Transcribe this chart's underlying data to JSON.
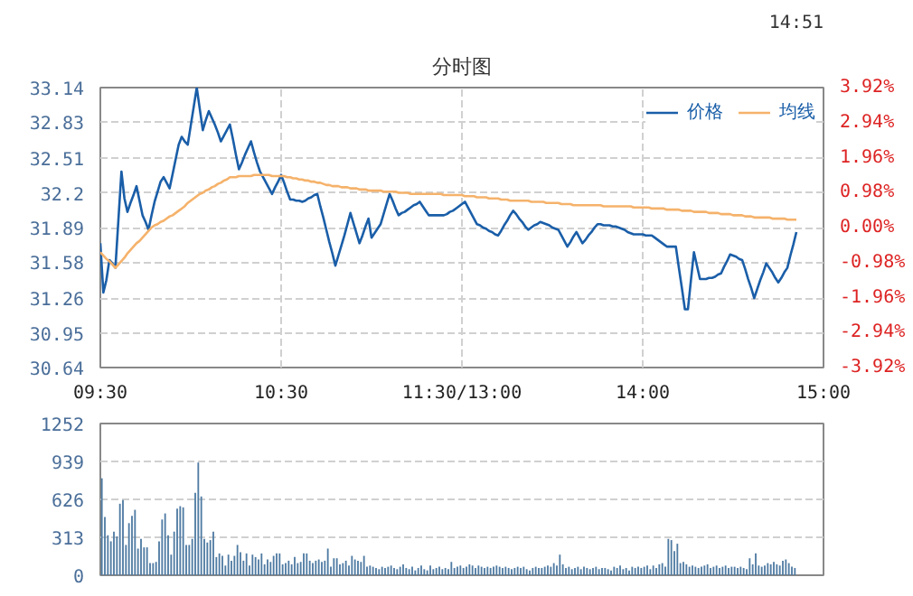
{
  "chart_data": [
    {
      "type": "line",
      "title": "分时图",
      "annotations": [
        "14:51"
      ],
      "legend": "top right",
      "grid": true,
      "line_style": "solid",
      "categories": [
        "09:30",
        null,
        null,
        null,
        null,
        null,
        null,
        null,
        null,
        null,
        null,
        null,
        null,
        null,
        null,
        null,
        null,
        null,
        null,
        null,
        null,
        null,
        null,
        null,
        null,
        null,
        null,
        null,
        null,
        null,
        null,
        null,
        null,
        null,
        null,
        null,
        null,
        null,
        null,
        null,
        null,
        null,
        null,
        null,
        null,
        null,
        null,
        null,
        null,
        null,
        null,
        null,
        null,
        null,
        null,
        null,
        null,
        null,
        null,
        null,
        "10:30",
        null,
        null,
        null,
        null,
        null,
        null,
        null,
        null,
        null,
        null,
        null,
        null,
        null,
        null,
        null,
        null,
        null,
        null,
        null,
        null,
        null,
        null,
        null,
        null,
        null,
        null,
        null,
        null,
        null,
        null,
        null,
        null,
        null,
        null,
        null,
        null,
        null,
        null,
        null,
        null,
        null,
        null,
        null,
        null,
        null,
        null,
        null,
        null,
        null,
        null,
        null,
        null,
        null,
        null,
        null,
        null,
        null,
        null,
        null,
        "11:30/13:00",
        null,
        null,
        null,
        null,
        null,
        null,
        null,
        null,
        null,
        null,
        null,
        null,
        null,
        null,
        null,
        null,
        null,
        null,
        null,
        null,
        null,
        null,
        null,
        null,
        null,
        null,
        null,
        null,
        null,
        null,
        null,
        null,
        null,
        null,
        null,
        null,
        null,
        null,
        null,
        null,
        null,
        null,
        null,
        null,
        null,
        null,
        null,
        null,
        null,
        null,
        null,
        null,
        null,
        null,
        null,
        null,
        null,
        null,
        null,
        "14:00",
        null,
        null,
        null,
        null,
        null,
        null,
        null,
        null,
        null,
        null,
        null,
        null,
        null,
        null,
        null,
        null,
        null,
        null,
        null,
        null,
        null,
        null,
        null,
        null,
        null,
        null,
        null,
        null,
        null,
        null,
        null,
        null,
        null,
        null,
        null,
        null,
        null,
        null,
        null,
        null,
        null,
        null,
        null,
        null,
        null,
        null,
        null,
        null,
        null,
        null,
        null,
        null,
        null,
        null,
        null,
        null,
        null,
        null,
        null,
        "15:00"
      ],
      "ylim": [
        30.64,
        33.14
      ],
      "yticks": [
        30.64,
        30.95,
        31.26,
        31.58,
        31.89,
        32.2,
        32.51,
        32.83,
        33.14
      ],
      "y2lim": [
        -3.92,
        3.92
      ],
      "y2ticks": [
        {
          "value": -3.92,
          "label": "-3.92%"
        },
        {
          "value": -2.94,
          "label": "-2.94%"
        },
        {
          "value": -1.96,
          "label": "-1.96%"
        },
        {
          "value": -0.98,
          "label": "-0.98%"
        },
        {
          "value": 0,
          "label": "0.00%"
        },
        {
          "value": 0.98,
          "label": "0.98%"
        },
        {
          "value": 1.96,
          "label": "1.96%"
        },
        {
          "value": 2.94,
          "label": "2.94%"
        },
        {
          "value": 3.92,
          "label": "3.92%"
        }
      ],
      "series": [
        {
          "name": "价格",
          "color": "#1a5ea8",
          "values": [
            31.75,
            31.31,
            31.42,
            31.6,
            31.57,
            31.53,
            31.96,
            32.39,
            32.15,
            32.03,
            32.11,
            32.18,
            32.26,
            32.13,
            32.0,
            31.94,
            31.87,
            32.0,
            32.12,
            32.21,
            32.3,
            32.34,
            32.29,
            32.24,
            32.37,
            32.5,
            32.63,
            32.7,
            32.66,
            32.63,
            32.8,
            32.97,
            33.14,
            32.95,
            32.76,
            32.85,
            32.93,
            32.87,
            32.81,
            32.74,
            32.66,
            32.71,
            32.76,
            32.81,
            32.68,
            32.54,
            32.41,
            32.47,
            32.54,
            32.6,
            32.66,
            32.56,
            32.47,
            32.39,
            32.34,
            32.29,
            32.24,
            32.19,
            32.25,
            32.3,
            32.36,
            32.29,
            32.21,
            32.14,
            32.14,
            32.13,
            32.13,
            32.12,
            32.13,
            32.15,
            32.16,
            32.18,
            32.19,
            32.08,
            31.98,
            31.87,
            31.76,
            31.66,
            31.55,
            31.64,
            31.73,
            31.82,
            31.92,
            32.02,
            31.93,
            31.84,
            31.75,
            31.82,
            31.9,
            31.97,
            31.8,
            31.84,
            31.88,
            31.92,
            32.01,
            32.1,
            32.19,
            32.13,
            32.06,
            32.0,
            32.02,
            32.03,
            32.05,
            32.07,
            32.09,
            32.1,
            32.12,
            32.08,
            32.04,
            32.0,
            32.0,
            32.0,
            32.0,
            32.0,
            32.0,
            32.01,
            32.03,
            32.04,
            32.06,
            32.08,
            32.1,
            32.12,
            32.07,
            32.02,
            31.97,
            31.92,
            31.91,
            31.89,
            31.88,
            31.86,
            31.85,
            31.83,
            31.82,
            31.86,
            31.91,
            31.95,
            32.0,
            32.04,
            32.01,
            31.97,
            31.94,
            31.9,
            31.87,
            31.89,
            31.91,
            31.92,
            31.94,
            31.93,
            31.92,
            31.91,
            31.89,
            31.88,
            31.87,
            31.82,
            31.77,
            31.72,
            31.76,
            31.81,
            31.85,
            31.8,
            31.75,
            31.78,
            31.82,
            31.85,
            31.89,
            31.92,
            31.92,
            31.91,
            31.91,
            31.91,
            31.9,
            31.9,
            31.89,
            31.88,
            31.87,
            31.85,
            31.84,
            31.83,
            31.83,
            31.83,
            31.83,
            31.82,
            31.82,
            31.82,
            31.8,
            31.78,
            31.76,
            31.74,
            31.72,
            31.72,
            31.72,
            31.72,
            31.53,
            31.35,
            31.16,
            31.16,
            31.42,
            31.67,
            31.55,
            31.43,
            31.43,
            31.43,
            31.44,
            31.44,
            31.45,
            31.47,
            31.48,
            31.54,
            31.59,
            31.65,
            31.64,
            31.63,
            31.61,
            31.6,
            31.52,
            31.43,
            31.35,
            31.26,
            31.34,
            31.42,
            31.49,
            31.57,
            31.53,
            31.49,
            31.44,
            31.4,
            31.44,
            31.49,
            31.53,
            31.64,
            31.74,
            31.85,
            null,
            null,
            null,
            null,
            null,
            null,
            null,
            null,
            null
          ]
        },
        {
          "name": "均线",
          "color": "#f5b26b",
          "values": [
            31.67,
            31.64,
            31.61,
            31.59,
            31.56,
            31.53,
            31.56,
            31.59,
            31.62,
            31.66,
            31.69,
            31.72,
            31.75,
            31.77,
            31.8,
            31.83,
            31.86,
            31.89,
            31.91,
            31.92,
            31.94,
            31.95,
            31.97,
            31.99,
            32.0,
            32.02,
            32.04,
            32.06,
            32.08,
            32.11,
            32.13,
            32.15,
            32.17,
            32.19,
            32.2,
            32.22,
            32.23,
            32.25,
            32.26,
            32.28,
            32.29,
            32.31,
            32.32,
            32.34,
            32.34,
            32.34,
            32.35,
            32.35,
            32.35,
            32.35,
            32.35,
            32.36,
            32.36,
            32.36,
            32.36,
            32.36,
            32.36,
            32.35,
            32.35,
            32.35,
            32.35,
            32.35,
            32.34,
            32.34,
            32.33,
            32.33,
            32.32,
            32.32,
            32.31,
            32.31,
            32.3,
            32.3,
            32.29,
            32.29,
            32.28,
            32.27,
            32.27,
            32.26,
            32.26,
            32.26,
            32.25,
            32.25,
            32.25,
            32.24,
            32.24,
            32.24,
            32.23,
            32.23,
            32.23,
            32.22,
            32.22,
            32.22,
            32.22,
            32.22,
            32.21,
            32.21,
            32.21,
            32.21,
            32.21,
            32.2,
            32.2,
            32.2,
            32.2,
            32.19,
            32.19,
            32.19,
            32.19,
            32.19,
            32.19,
            32.19,
            32.19,
            32.19,
            32.19,
            32.19,
            32.18,
            32.18,
            32.18,
            32.18,
            32.18,
            32.18,
            32.18,
            32.17,
            32.17,
            32.17,
            32.17,
            32.16,
            32.16,
            32.16,
            32.16,
            32.15,
            32.15,
            32.15,
            32.15,
            32.14,
            32.14,
            32.14,
            32.13,
            32.13,
            32.13,
            32.13,
            32.13,
            32.13,
            32.13,
            32.12,
            32.12,
            32.12,
            32.12,
            32.12,
            32.11,
            32.11,
            32.11,
            32.11,
            32.11,
            32.1,
            32.1,
            32.1,
            32.1,
            32.09,
            32.09,
            32.09,
            32.09,
            32.09,
            32.09,
            32.09,
            32.09,
            32.09,
            32.09,
            32.08,
            32.08,
            32.08,
            32.08,
            32.08,
            32.08,
            32.08,
            32.08,
            32.08,
            32.08,
            32.07,
            32.07,
            32.07,
            32.07,
            32.07,
            32.07,
            32.06,
            32.06,
            32.06,
            32.06,
            32.06,
            32.05,
            32.05,
            32.05,
            32.05,
            32.05,
            32.04,
            32.04,
            32.04,
            32.04,
            32.03,
            32.03,
            32.03,
            32.03,
            32.03,
            32.02,
            32.02,
            32.02,
            32.02,
            32.01,
            32.01,
            32.01,
            32.01,
            32.0,
            32.0,
            32.0,
            32.0,
            31.99,
            31.99,
            31.99,
            31.98,
            31.98,
            31.98,
            31.98,
            31.98,
            31.98,
            31.97,
            31.97,
            31.97,
            31.97,
            31.97,
            31.96,
            31.96,
            31.96,
            31.96,
            null,
            null,
            null,
            null,
            null,
            null,
            null,
            null,
            null
          ]
        }
      ]
    },
    {
      "type": "bar",
      "grid": "y",
      "tick_labels": "y",
      "color": "#4f7ba3",
      "categories": [
        null,
        null,
        null,
        null,
        null,
        null,
        null,
        null,
        null,
        null,
        null,
        null,
        null,
        null,
        null,
        null,
        null,
        null,
        null,
        null,
        null,
        null,
        null,
        null,
        null,
        null,
        null,
        null,
        null,
        null,
        null,
        null,
        null,
        null,
        null,
        null,
        null,
        null,
        null,
        null,
        null,
        null,
        null,
        null,
        null,
        null,
        null,
        null,
        null,
        null,
        null,
        null,
        null,
        null,
        null,
        null,
        null,
        null,
        null,
        null,
        null,
        null,
        null,
        null,
        null,
        null,
        null,
        null,
        null,
        null,
        null,
        null,
        null,
        null,
        null,
        null,
        null,
        null,
        null,
        null,
        null,
        null,
        null,
        null,
        null,
        null,
        null,
        null,
        null,
        null,
        null,
        null,
        null,
        null,
        null,
        null,
        null,
        null,
        null,
        null,
        null,
        null,
        null,
        null,
        null,
        null,
        null,
        null,
        null,
        null,
        null,
        null,
        null,
        null,
        null,
        null,
        null,
        null,
        null,
        null,
        null,
        null,
        null,
        null,
        null,
        null,
        null,
        null,
        null,
        null,
        null,
        null,
        null,
        null,
        null,
        null,
        null,
        null,
        null,
        null,
        null,
        null,
        null,
        null,
        null,
        null,
        null,
        null,
        null,
        null,
        null,
        null,
        null,
        null,
        null,
        null,
        null,
        null,
        null,
        null,
        null,
        null,
        null,
        null,
        null,
        null,
        null,
        null,
        null,
        null,
        null,
        null,
        null,
        null,
        null,
        null,
        null,
        null,
        null,
        null,
        null,
        null,
        null,
        null,
        null,
        null,
        null,
        null,
        null,
        null,
        null,
        null,
        null,
        null,
        null,
        null,
        null,
        null,
        null,
        null,
        null,
        null,
        null,
        null,
        null,
        null,
        null,
        null,
        null,
        null,
        null,
        null,
        null,
        null,
        null,
        null,
        null,
        null,
        null,
        null,
        null,
        null,
        null,
        null,
        null,
        null,
        null,
        null,
        null,
        null,
        null,
        null,
        null,
        null,
        null,
        null,
        null,
        null,
        null,
        null
      ],
      "ylim": [
        0,
        1252
      ],
      "yticks": [
        0,
        313,
        626,
        939,
        1252
      ],
      "values": [
        800,
        480,
        330,
        280,
        360,
        320,
        590,
        620,
        250,
        430,
        490,
        540,
        220,
        300,
        230,
        230,
        100,
        100,
        110,
        280,
        460,
        510,
        330,
        170,
        360,
        550,
        570,
        560,
        250,
        250,
        300,
        680,
        930,
        650,
        300,
        270,
        290,
        360,
        150,
        180,
        160,
        80,
        170,
        120,
        160,
        250,
        190,
        120,
        180,
        80,
        170,
        150,
        130,
        180,
        90,
        130,
        110,
        160,
        180,
        180,
        90,
        100,
        120,
        90,
        150,
        100,
        110,
        180,
        180,
        120,
        100,
        120,
        130,
        110,
        120,
        220,
        70,
        140,
        140,
        90,
        100,
        120,
        80,
        160,
        130,
        120,
        110,
        160,
        70,
        80,
        70,
        60,
        50,
        70,
        60,
        70,
        80,
        60,
        50,
        70,
        90,
        60,
        50,
        70,
        40,
        60,
        80,
        50,
        40,
        80,
        50,
        60,
        70,
        50,
        60,
        50,
        110,
        60,
        70,
        80,
        60,
        70,
        90,
        80,
        60,
        80,
        70,
        60,
        70,
        60,
        70,
        80,
        70,
        60,
        70,
        60,
        50,
        60,
        70,
        60,
        70,
        50,
        40,
        60,
        70,
        60,
        60,
        70,
        80,
        70,
        100,
        80,
        170,
        90,
        60,
        70,
        50,
        60,
        70,
        50,
        70,
        60,
        50,
        60,
        70,
        50,
        60,
        60,
        50,
        40,
        70,
        60,
        80,
        50,
        60,
        40,
        70,
        60,
        70,
        60,
        70,
        80,
        50,
        80,
        60,
        90,
        100,
        70,
        300,
        290,
        200,
        260,
        100,
        110,
        90,
        70,
        80,
        70,
        60,
        70,
        80,
        90,
        60,
        70,
        80,
        60,
        70,
        80,
        60,
        70,
        70,
        60,
        70,
        60,
        50,
        140,
        90,
        180,
        80,
        70,
        80,
        100,
        90,
        110,
        90,
        80,
        120,
        130,
        100,
        70,
        60,
        null,
        null,
        null,
        null,
        null,
        null,
        null,
        null,
        null
      ]
    }
  ]
}
